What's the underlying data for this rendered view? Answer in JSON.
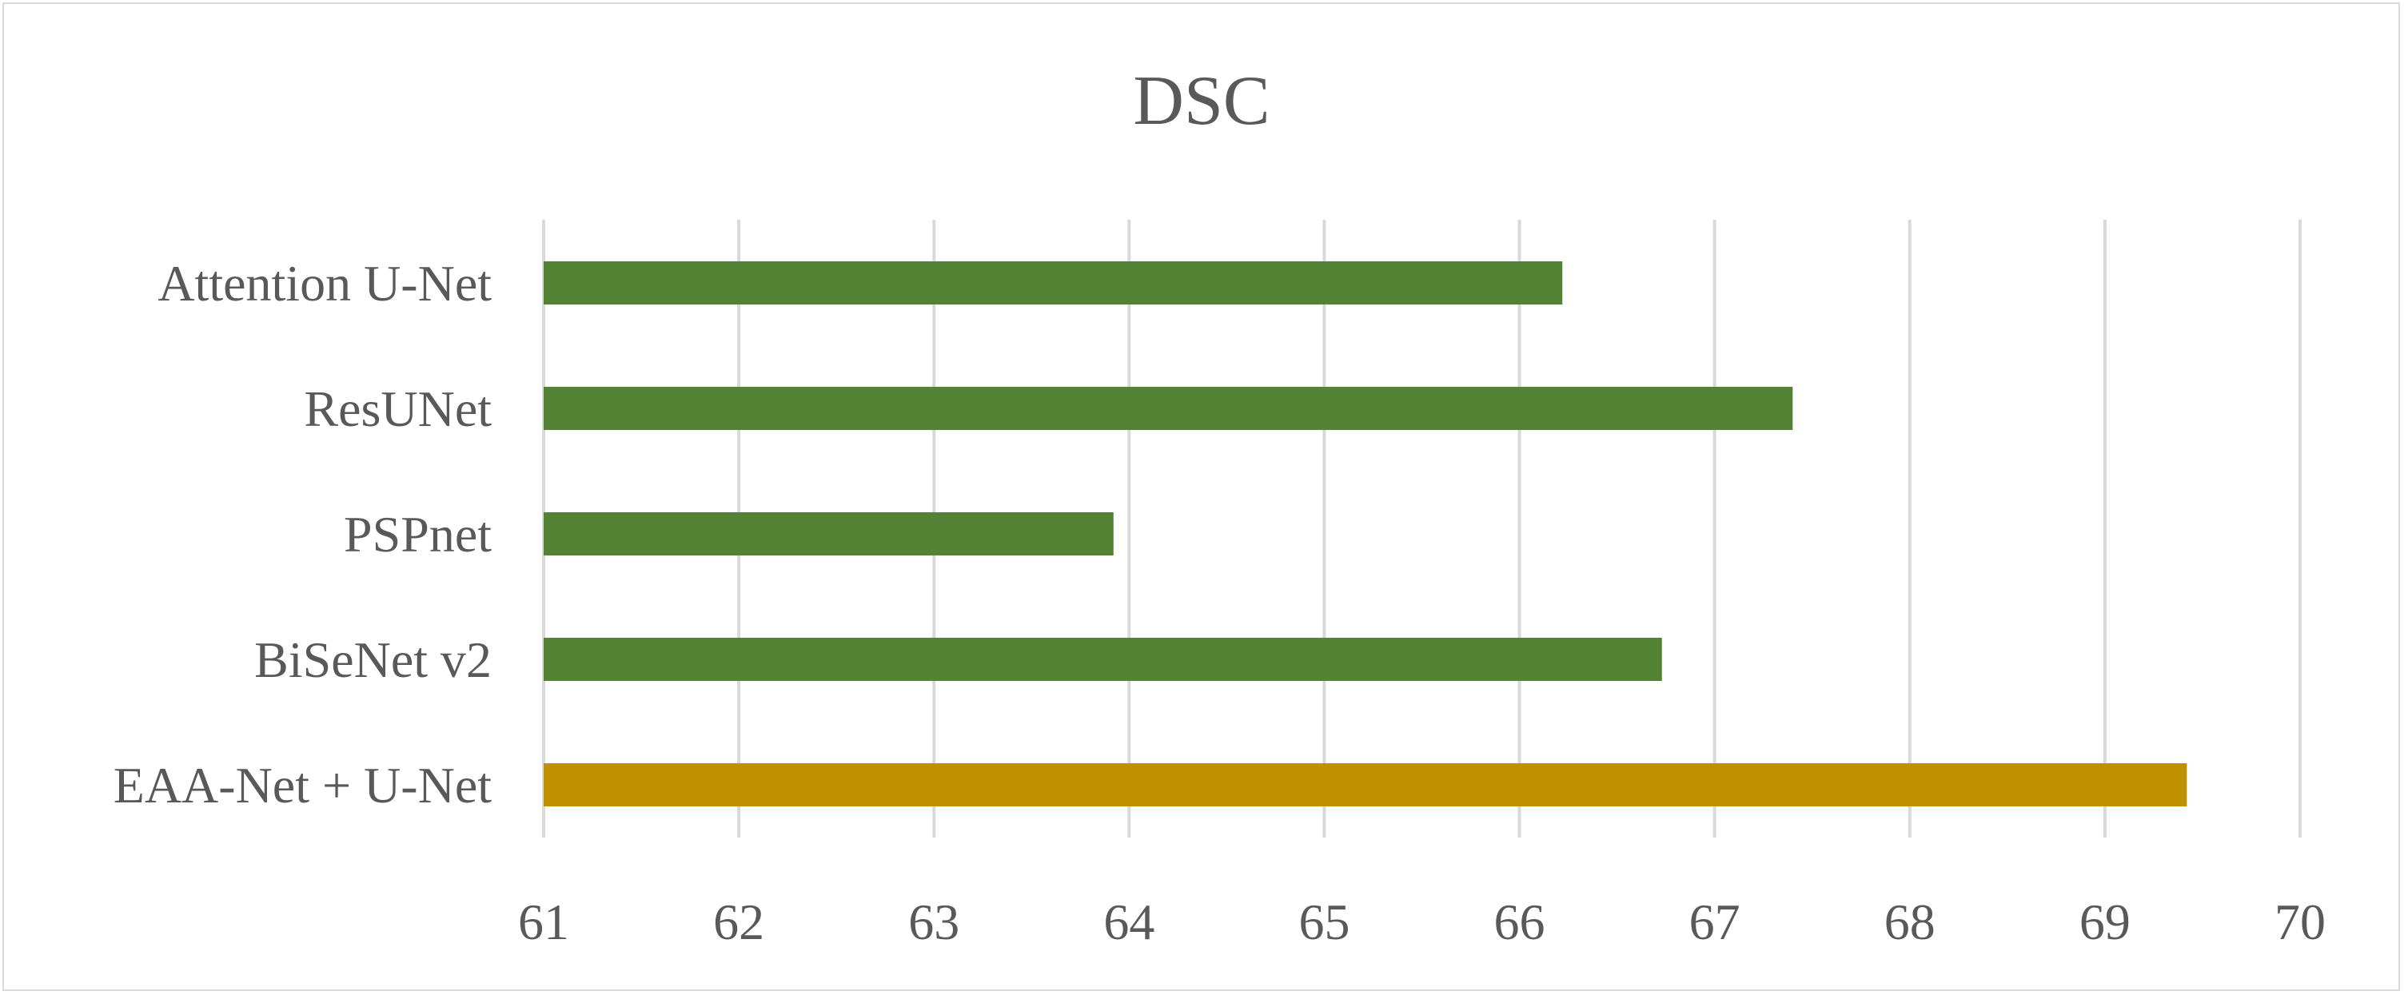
{
  "chart_data": {
    "type": "bar",
    "orientation": "horizontal",
    "title": "DSC",
    "categories": [
      "Attention U-Net",
      "ResUNet",
      "PSPnet",
      "BiSeNet v2",
      "EAA-Net + U-Net"
    ],
    "values": [
      66.22,
      67.4,
      63.92,
      66.73,
      69.42
    ],
    "colors": [
      "#548235",
      "#548235",
      "#548235",
      "#548235",
      "#bf9000"
    ],
    "xlim": [
      61,
      70
    ],
    "xticks": [
      61,
      62,
      63,
      64,
      65,
      66,
      67,
      68,
      69,
      70
    ],
    "xlabel": "",
    "ylabel": "",
    "grid": "vertical",
    "legend": "none"
  }
}
